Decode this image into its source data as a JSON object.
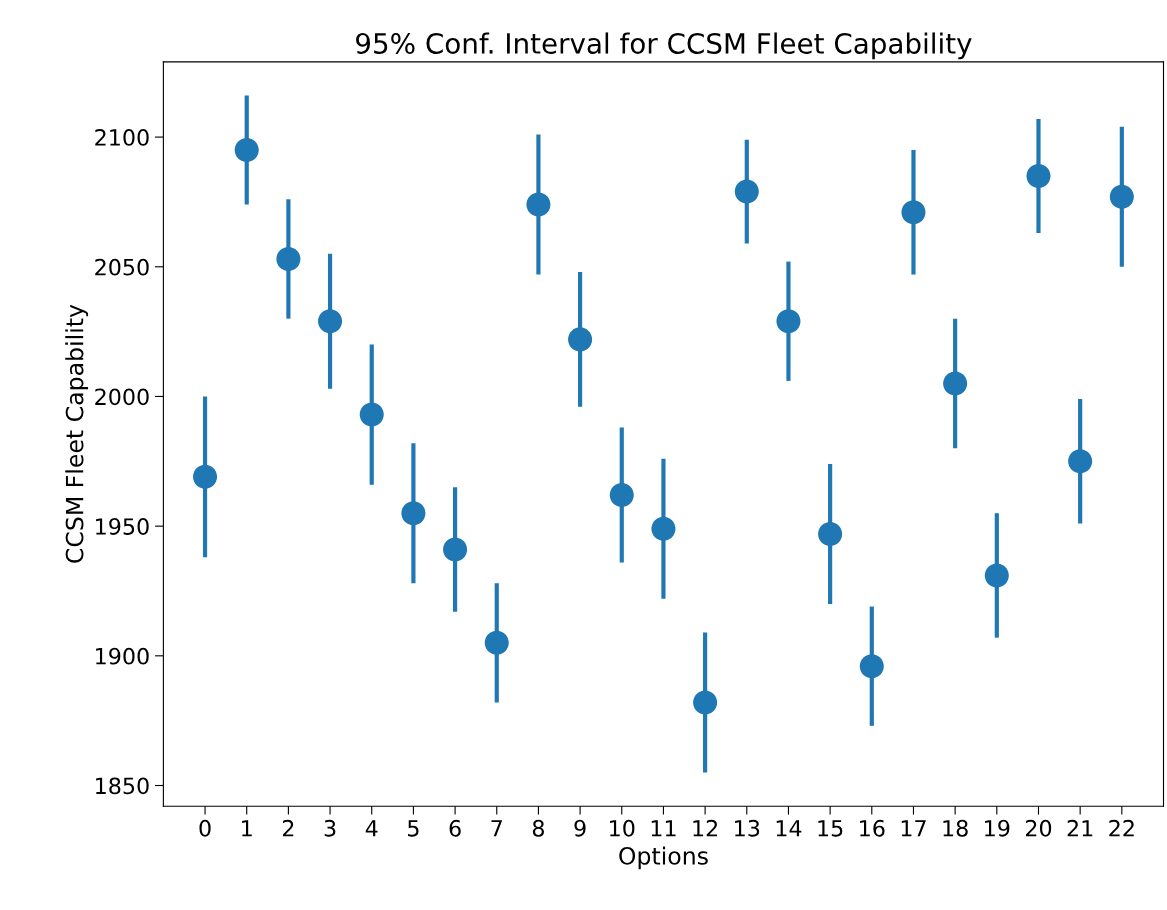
{
  "chart_data": {
    "type": "scatter",
    "title": "95% Conf. Interval for CCSM Fleet Capability",
    "xlabel": "Options",
    "ylabel": "CCSM Fleet Capability",
    "categories": [
      "0",
      "1",
      "2",
      "3",
      "4",
      "5",
      "6",
      "7",
      "8",
      "9",
      "10",
      "11",
      "12",
      "13",
      "14",
      "15",
      "16",
      "17",
      "18",
      "19",
      "20",
      "21",
      "22"
    ],
    "values": [
      1969,
      2095,
      2053,
      2029,
      1993,
      1955,
      1941,
      1905,
      2074,
      2022,
      1962,
      1949,
      1882,
      2079,
      2029,
      1947,
      1896,
      2071,
      2005,
      1931,
      2085,
      1975,
      2077
    ],
    "errors": [
      31,
      21,
      23,
      26,
      27,
      27,
      24,
      23,
      27,
      26,
      26,
      27,
      27,
      20,
      23,
      27,
      23,
      24,
      25,
      24,
      22,
      24,
      27
    ],
    "color": "#1f77b4",
    "marker": "circle",
    "ylim": [
      1842,
      2129
    ],
    "yticks": [
      1850,
      1900,
      1950,
      2000,
      2050,
      2100
    ],
    "grid": false,
    "legend": false
  }
}
